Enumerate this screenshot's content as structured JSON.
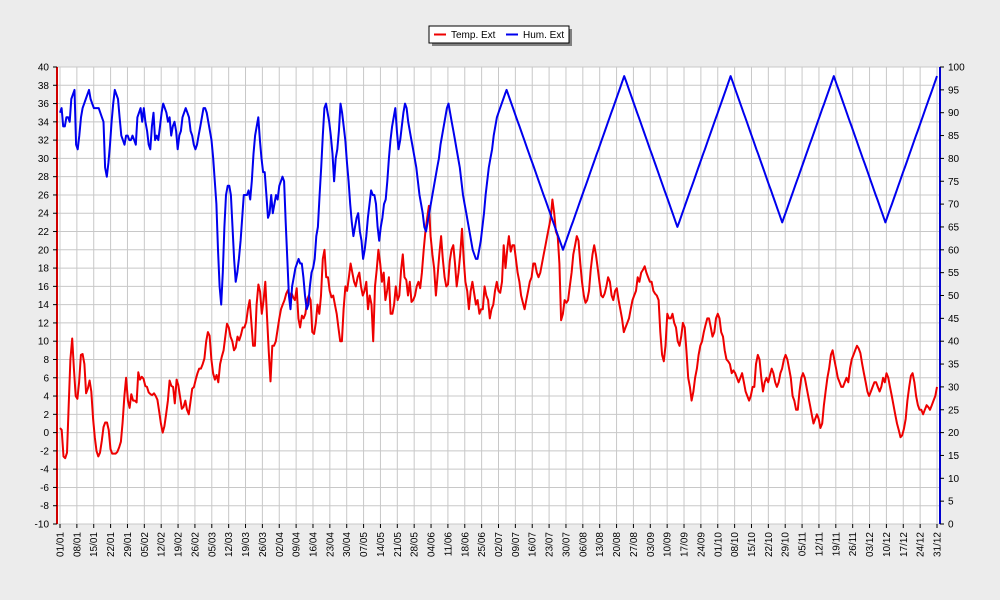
{
  "chart_data": {
    "type": "line",
    "legend_position": "top-center",
    "grid": true,
    "y_left": {
      "min": -10,
      "max": 40,
      "step": 2,
      "color": "#d00000"
    },
    "y_right": {
      "min": 0,
      "max": 100,
      "step": 5,
      "color": "#0000d0"
    },
    "x_ticks": [
      "01/01",
      "08/01",
      "15/01",
      "22/01",
      "29/01",
      "05/02",
      "12/02",
      "19/02",
      "26/02",
      "05/03",
      "12/03",
      "19/03",
      "26/03",
      "02/04",
      "09/04",
      "16/04",
      "23/04",
      "30/04",
      "07/05",
      "14/05",
      "21/05",
      "28/05",
      "04/06",
      "11/06",
      "18/06",
      "25/06",
      "02/07",
      "09/07",
      "16/07",
      "23/07",
      "30/07",
      "06/08",
      "13/08",
      "20/08",
      "27/08",
      "03/09",
      "10/09",
      "17/09",
      "24/09",
      "01/10",
      "08/10",
      "15/10",
      "22/10",
      "29/10",
      "05/11",
      "12/11",
      "19/11",
      "26/11",
      "03/12",
      "10/12",
      "17/12",
      "24/12",
      "31/12"
    ],
    "series": [
      {
        "name": "Temp. Ext",
        "color": "#ee0000",
        "axis": "left",
        "values": [
          0.5,
          0.3,
          -2.6,
          -2.8,
          -2.2,
          3,
          8,
          10.3,
          7,
          4,
          3.7,
          5.5,
          8.5,
          8.6,
          7.5,
          4.3,
          4.8,
          5.7,
          4.5,
          1.5,
          -0.5,
          -2,
          -2.6,
          -2.2,
          -0.9,
          0.6,
          1.1,
          1.1,
          0.3,
          -1.8,
          -2.3,
          -2.3,
          -2.3,
          -2.1,
          -1.6,
          -1,
          1.1,
          4,
          6,
          3.5,
          2.7,
          4.2,
          3.5,
          3.5,
          3.3,
          6.6,
          5.8,
          6.1,
          5.9,
          5.1,
          5,
          4.4,
          4.2,
          4.1,
          4.3,
          4,
          3.6,
          2.3,
          1,
          0,
          0.7,
          2,
          3.5,
          5.7,
          5.1,
          5,
          3.2,
          5.8,
          5.2,
          3.9,
          2.6,
          2.8,
          3.5,
          2.5,
          2,
          3.4,
          4.8,
          5,
          5.8,
          6.5,
          7,
          7,
          7.5,
          8.1,
          10,
          11,
          10.6,
          8,
          6.5,
          5.8,
          6.3,
          5.5,
          7.5,
          8.3,
          9,
          10.5,
          11.9,
          11.5,
          10.5,
          10,
          9,
          9.3,
          10.5,
          10.1,
          10.7,
          11.5,
          11.5,
          12.1,
          13.5,
          14.5,
          12,
          9.5,
          9.5,
          14,
          16.2,
          15.4,
          13,
          14.5,
          16.5,
          12.5,
          8.8,
          5.6,
          9.5,
          9.5,
          10,
          11.2,
          12.5,
          13.5,
          14,
          14.5,
          15.2,
          15.6,
          14.8,
          15.3,
          14.8,
          14.5,
          15.8,
          12.5,
          11.5,
          12.8,
          12.5,
          13,
          14.5,
          15,
          14.5,
          11,
          10.8,
          12,
          14,
          13,
          15,
          19,
          20,
          17,
          17,
          15.5,
          14.8,
          15,
          14,
          13,
          11.5,
          10,
          10,
          13.5,
          16,
          15.5,
          17,
          18.5,
          17.5,
          16.5,
          16,
          17,
          17.5,
          16,
          15,
          15.5,
          16.5,
          13.5,
          15,
          14,
          10,
          16,
          17.8,
          20,
          18.5,
          16.5,
          17.5,
          14.5,
          15.5,
          17,
          13,
          13,
          14,
          16,
          14.5,
          15,
          17.8,
          19.5,
          17,
          16.7,
          15,
          16.5,
          14.3,
          14.5,
          15,
          16,
          16.5,
          15.8,
          17.5,
          20,
          22,
          23.5,
          24.8,
          21.5,
          19.5,
          18,
          15,
          17.2,
          19.5,
          21.5,
          19,
          17,
          16,
          16.2,
          18.8,
          20,
          20.5,
          18.5,
          16,
          17.5,
          19.5,
          22.3,
          19,
          16.5,
          15.5,
          13.5,
          15.5,
          16.5,
          15.3,
          14,
          14.5,
          13,
          13.5,
          13.5,
          16,
          15,
          14.5,
          12.5,
          13.5,
          14,
          15.5,
          16.5,
          15.5,
          15.3,
          16.5,
          20.5,
          18,
          20,
          21.5,
          19.8,
          20.5,
          20.5,
          19,
          17.5,
          16.5,
          15,
          14.2,
          13.5,
          14.5,
          15.5,
          16.5,
          17,
          18.5,
          18.5,
          17.5,
          17,
          17.5,
          18.5,
          19.5,
          20.5,
          21.5,
          22.5,
          23.5,
          25.5,
          24,
          22,
          21.5,
          18.5,
          12.3,
          13,
          14.5,
          14.2,
          14.5,
          16,
          17.5,
          19.5,
          20.5,
          21.5,
          21,
          18.5,
          16.5,
          15,
          14.2,
          14.5,
          15.5,
          17.8,
          19.5,
          20.5,
          19.5,
          18,
          16.5,
          15,
          14.8,
          15.2,
          16,
          17,
          16.5,
          15,
          14.5,
          15.5,
          15.8,
          14.5,
          13.5,
          12.5,
          11,
          11.5,
          12,
          12.5,
          13.5,
          14.5,
          15,
          15.5,
          17,
          16.5,
          17.5,
          17.8,
          18.2,
          17.5,
          17,
          16.5,
          16.5,
          15.5,
          15.2,
          15,
          14.5,
          11,
          8.5,
          7.8,
          9.5,
          13,
          12.5,
          12.5,
          13,
          12,
          11.5,
          10,
          9.5,
          10.5,
          12,
          11.5,
          9,
          6,
          5,
          3.5,
          4.5,
          6,
          7,
          8.5,
          9.5,
          10,
          11,
          11.8,
          12.5,
          12.5,
          11.5,
          10.5,
          11,
          12.5,
          13,
          12.5,
          11,
          10.5,
          9,
          8,
          7.8,
          7.5,
          6.5,
          6.8,
          6.5,
          6,
          5.5,
          6,
          6.5,
          5.5,
          4.5,
          4,
          3.5,
          4,
          5,
          5,
          7.5,
          8.5,
          8,
          6,
          4.5,
          5.5,
          6,
          5.5,
          6.3,
          7,
          6.5,
          5.5,
          5,
          5.5,
          6.5,
          7,
          8,
          8.5,
          8,
          7,
          6,
          4,
          3.5,
          2.5,
          2.5,
          4.5,
          6,
          6.5,
          6,
          5,
          4,
          3,
          2,
          1,
          1.5,
          2,
          1.5,
          0.5,
          1,
          3,
          4.5,
          6,
          7,
          8.5,
          9,
          8,
          7,
          6,
          5.5,
          5,
          5,
          5.5,
          6,
          5.5,
          7,
          8,
          8.5,
          9,
          9.5,
          9.2,
          8.7,
          7.5,
          6.5,
          5.5,
          4.5,
          4,
          4.5,
          5,
          5.5,
          5.5,
          5,
          4.5,
          5,
          6,
          5.5,
          6.5,
          6,
          5,
          4,
          3,
          2,
          1,
          0.3,
          -0.5,
          -0.3,
          0.4,
          1.5,
          3.5,
          5,
          6.2,
          6.5,
          5.5,
          4,
          3,
          2.5,
          2.5,
          2,
          2.5,
          3,
          2.8,
          2.5,
          3,
          3.5,
          4,
          5
        ]
      },
      {
        "name": "Hum. Ext",
        "color": "#0000ee",
        "axis": "right",
        "values": [
          90,
          91,
          87,
          87,
          89,
          89,
          88,
          93,
          94,
          95,
          83,
          82,
          85,
          89,
          91,
          92,
          93,
          94,
          95,
          93,
          92,
          91,
          91,
          91,
          91,
          90,
          89,
          88,
          78,
          76,
          79,
          83,
          88,
          92,
          95,
          94,
          93,
          89,
          85,
          84,
          83,
          85,
          85,
          84,
          84,
          85,
          84,
          83,
          89,
          90,
          91,
          88,
          91,
          88,
          86,
          83,
          82,
          87,
          90,
          84,
          85,
          84,
          87,
          90,
          92,
          91,
          90,
          88,
          89,
          85,
          87,
          88,
          86,
          82,
          85,
          86,
          89,
          90,
          91,
          90,
          89,
          86,
          85,
          83,
          82,
          83,
          85,
          87,
          89,
          91,
          91,
          90,
          88,
          86,
          84,
          80,
          75,
          70,
          60,
          52,
          48,
          55,
          65,
          72,
          74,
          74,
          72,
          65,
          58,
          53,
          55,
          58,
          62,
          67,
          72,
          72,
          72,
          73,
          71,
          75,
          81,
          85,
          87,
          89,
          84,
          80,
          77,
          77,
          72,
          67,
          68,
          72,
          68,
          70,
          72,
          71,
          74,
          75,
          76,
          75,
          66,
          58,
          50,
          47,
          52,
          54,
          56,
          57,
          58,
          57,
          57,
          54,
          50,
          47,
          48,
          52,
          55,
          56,
          58,
          63,
          65,
          72,
          78,
          85,
          91,
          92,
          90,
          88,
          85,
          81,
          75,
          80,
          82,
          86,
          92,
          90,
          87,
          84,
          79,
          75,
          70,
          66,
          63,
          65,
          67,
          68,
          64,
          62,
          58,
          60,
          63,
          67,
          70,
          73,
          72,
          72,
          70,
          65,
          62,
          65,
          67,
          70,
          71,
          75,
          80,
          84,
          87,
          89,
          91,
          86,
          82,
          84,
          87,
          90,
          92,
          91,
          88,
          86,
          84,
          82,
          80,
          78,
          75,
          72,
          70,
          68,
          65,
          64,
          66,
          68,
          70,
          72,
          74,
          76,
          78,
          80,
          83,
          85,
          87,
          89,
          91,
          92,
          90,
          88,
          86,
          84,
          82,
          80,
          78,
          75,
          72,
          70,
          68,
          66,
          64,
          62,
          60,
          59,
          58,
          58,
          60,
          62,
          65,
          68,
          72,
          75,
          78,
          80,
          82,
          85,
          87,
          89,
          90,
          91,
          92,
          93,
          94,
          95,
          94,
          93,
          92,
          91,
          90,
          89,
          88,
          87,
          86,
          85,
          84,
          83,
          82,
          81,
          80,
          79,
          78,
          77,
          76,
          75,
          74,
          73,
          72,
          71,
          70,
          69,
          68,
          67,
          66,
          65,
          64,
          63,
          62,
          61,
          60,
          61,
          62,
          63,
          64,
          65,
          66,
          67,
          68,
          69,
          70,
          71,
          72,
          73,
          74,
          75,
          76,
          77,
          78,
          79,
          80,
          81,
          82,
          83,
          84,
          85,
          86,
          87,
          88,
          89,
          90,
          91,
          92,
          93,
          94,
          95,
          96,
          97,
          98,
          97,
          96,
          95,
          94,
          93,
          92,
          91,
          90,
          89,
          88,
          87,
          86,
          85,
          84,
          83,
          82,
          81,
          80,
          79,
          78,
          77,
          76,
          75,
          74,
          73,
          72,
          71,
          70,
          69,
          68,
          67,
          66,
          65,
          66,
          67,
          68,
          69,
          70,
          71,
          72,
          73,
          74,
          75,
          76,
          77,
          78,
          79,
          80,
          81,
          82,
          83,
          84,
          85,
          86,
          87,
          88,
          89,
          90,
          91,
          92,
          93,
          94,
          95,
          96,
          97,
          98,
          97,
          96,
          95,
          94,
          93,
          92,
          91,
          90,
          89,
          88,
          87,
          86,
          85,
          84,
          83,
          82,
          81,
          80,
          79,
          78,
          77,
          76,
          75,
          74,
          73,
          72,
          71,
          70,
          69,
          68,
          67,
          66,
          67,
          68,
          69,
          70,
          71,
          72,
          73,
          74,
          75,
          76,
          77,
          78,
          79,
          80,
          81,
          82,
          83,
          84,
          85,
          86,
          87,
          88,
          89,
          90,
          91,
          92,
          93,
          94,
          95,
          96,
          97,
          98,
          97,
          96,
          95,
          94,
          93,
          92,
          91,
          90,
          89,
          88,
          87,
          86,
          85,
          84,
          83,
          82,
          81,
          80,
          79,
          78,
          77,
          76,
          75,
          74,
          73,
          72,
          71,
          70,
          69,
          68,
          67,
          66,
          67,
          68,
          69,
          70,
          71,
          72,
          73,
          74,
          75,
          76,
          77,
          78,
          79,
          80,
          81,
          82,
          83,
          84,
          85,
          86,
          87,
          88,
          89,
          90,
          91,
          92,
          93,
          94,
          95,
          96,
          97,
          98
        ]
      }
    ]
  }
}
